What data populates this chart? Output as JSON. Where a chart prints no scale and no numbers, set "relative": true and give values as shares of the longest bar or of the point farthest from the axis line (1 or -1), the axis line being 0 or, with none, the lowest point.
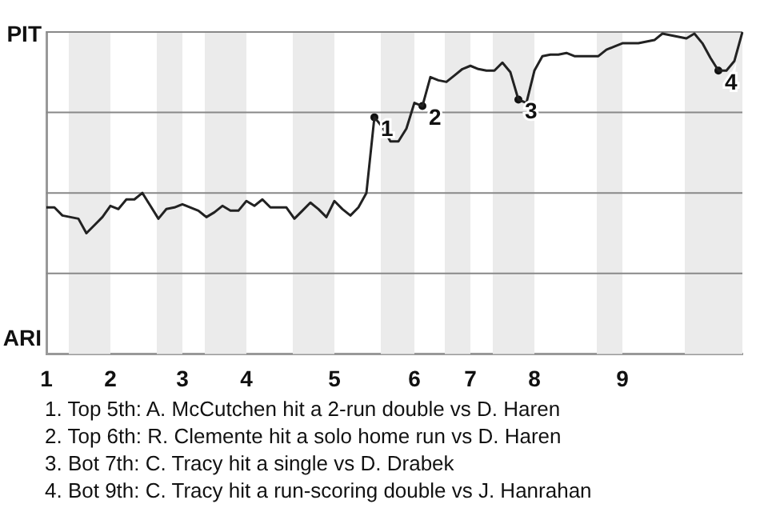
{
  "chart_data": {
    "type": "line",
    "relative": true,
    "categories": [
      "1",
      null,
      null,
      null,
      null,
      null,
      null,
      null,
      "2",
      null,
      null,
      null,
      null,
      null,
      null,
      null,
      null,
      "3",
      null,
      null,
      null,
      null,
      null,
      null,
      null,
      "4",
      null,
      null,
      null,
      null,
      null,
      null,
      null,
      null,
      null,
      null,
      "5",
      null,
      null,
      null,
      null,
      null,
      null,
      null,
      null,
      null,
      "6",
      null,
      null,
      null,
      null,
      null,
      null,
      "7",
      null,
      null,
      null,
      null,
      null,
      null,
      null,
      "8",
      null,
      null,
      null,
      null,
      null,
      null,
      null,
      null,
      null,
      null,
      "9",
      null,
      null,
      null,
      null,
      null,
      null,
      null,
      null,
      null,
      null,
      null,
      null,
      null,
      null,
      null
    ],
    "series": [
      {
        "color": "#222222",
        "values": [
          0.455,
          0.455,
          0.43,
          0.425,
          0.42,
          0.375,
          0.4,
          0.425,
          0.46,
          0.45,
          0.48,
          0.48,
          0.5,
          0.46,
          0.42,
          0.45,
          0.455,
          0.465,
          0.455,
          0.445,
          0.425,
          0.44,
          0.46,
          0.445,
          0.445,
          0.475,
          0.46,
          0.48,
          0.455,
          0.455,
          0.455,
          0.42,
          0.445,
          0.47,
          0.45,
          0.425,
          0.475,
          0.45,
          0.43,
          0.455,
          0.5,
          0.735,
          0.705,
          0.66,
          0.66,
          0.7,
          0.78,
          0.77,
          0.86,
          0.85,
          0.845,
          0.865,
          0.885,
          0.895,
          0.885,
          0.88,
          0.88,
          0.905,
          0.875,
          0.79,
          0.78,
          0.88,
          0.925,
          0.93,
          0.93,
          0.935,
          0.925,
          0.925,
          0.925,
          0.925,
          0.945,
          0.955,
          0.965,
          0.965,
          0.965,
          0.97,
          0.975,
          0.995,
          0.99,
          0.985,
          0.98,
          0.995,
          0.965,
          0.92,
          0.88,
          0.88,
          0.91,
          1
        ],
        "name": null
      },
      {
        "type": "scatter",
        "name": "1",
        "color": "#111111",
        "marker": "circle",
        "values": [
          null,
          null,
          null,
          null,
          null,
          null,
          null,
          null,
          null,
          null,
          null,
          null,
          null,
          null,
          null,
          null,
          null,
          null,
          null,
          null,
          null,
          null,
          null,
          null,
          null,
          null,
          null,
          null,
          null,
          null,
          null,
          null,
          null,
          null,
          null,
          null,
          null,
          null,
          null,
          null,
          null,
          0.735,
          null,
          null,
          null,
          null,
          null,
          null,
          null,
          null,
          null,
          null,
          null,
          null,
          null,
          null,
          null,
          null,
          null,
          null,
          null,
          null,
          null,
          null,
          null,
          null,
          null,
          null,
          null,
          null,
          null,
          null,
          null,
          null,
          null,
          null,
          null,
          null,
          null,
          null,
          null,
          null,
          null,
          null,
          null,
          null,
          null,
          null
        ]
      },
      {
        "type": "scatter",
        "name": "2",
        "color": "#111111",
        "marker": "circle",
        "values": [
          null,
          null,
          null,
          null,
          null,
          null,
          null,
          null,
          null,
          null,
          null,
          null,
          null,
          null,
          null,
          null,
          null,
          null,
          null,
          null,
          null,
          null,
          null,
          null,
          null,
          null,
          null,
          null,
          null,
          null,
          null,
          null,
          null,
          null,
          null,
          null,
          null,
          null,
          null,
          null,
          null,
          null,
          null,
          null,
          null,
          null,
          null,
          0.77,
          null,
          null,
          null,
          null,
          null,
          null,
          null,
          null,
          null,
          null,
          null,
          null,
          null,
          null,
          null,
          null,
          null,
          null,
          null,
          null,
          null,
          null,
          null,
          null,
          null,
          null,
          null,
          null,
          null,
          null,
          null,
          null,
          null,
          null,
          null,
          null,
          null,
          null,
          null,
          null
        ]
      },
      {
        "type": "scatter",
        "name": "3",
        "color": "#111111",
        "marker": "circle",
        "values": [
          null,
          null,
          null,
          null,
          null,
          null,
          null,
          null,
          null,
          null,
          null,
          null,
          null,
          null,
          null,
          null,
          null,
          null,
          null,
          null,
          null,
          null,
          null,
          null,
          null,
          null,
          null,
          null,
          null,
          null,
          null,
          null,
          null,
          null,
          null,
          null,
          null,
          null,
          null,
          null,
          null,
          null,
          null,
          null,
          null,
          null,
          null,
          null,
          null,
          null,
          null,
          null,
          null,
          null,
          null,
          null,
          null,
          null,
          null,
          0.79,
          null,
          null,
          null,
          null,
          null,
          null,
          null,
          null,
          null,
          null,
          null,
          null,
          null,
          null,
          null,
          null,
          null,
          null,
          null,
          null,
          null,
          null,
          null,
          null,
          null,
          null,
          null,
          null
        ]
      },
      {
        "type": "scatter",
        "name": "4",
        "color": "#111111",
        "marker": "circle",
        "values": [
          null,
          null,
          null,
          null,
          null,
          null,
          null,
          null,
          null,
          null,
          null,
          null,
          null,
          null,
          null,
          null,
          null,
          null,
          null,
          null,
          null,
          null,
          null,
          null,
          null,
          null,
          null,
          null,
          null,
          null,
          null,
          null,
          null,
          null,
          null,
          null,
          null,
          null,
          null,
          null,
          null,
          null,
          null,
          null,
          null,
          null,
          null,
          null,
          null,
          null,
          null,
          null,
          null,
          null,
          null,
          null,
          null,
          null,
          null,
          null,
          null,
          null,
          null,
          null,
          null,
          null,
          null,
          null,
          null,
          null,
          null,
          null,
          null,
          null,
          null,
          null,
          null,
          null,
          null,
          null,
          null,
          null,
          null,
          null,
          0.88,
          null,
          null,
          null
        ]
      }
    ],
    "legend": false,
    "marker": "none",
    "line_style": "solid",
    "ref_lines": [
      {
        "axis": "y",
        "value": 0.25,
        "color": "#888888"
      },
      {
        "axis": "y",
        "value": 0.5,
        "color": "#888888"
      },
      {
        "axis": "y",
        "value": 0.75,
        "color": "#888888"
      },
      {
        "axis": "y",
        "value": 1,
        "color": "#888888"
      }
    ],
    "annotations": [
      "PIT",
      "ARI",
      "1. Top 5th: A. McCutchen hit a 2-run double vs D. Haren",
      "2. Top 6th: R. Clemente hit a solo home run vs D. Haren",
      "3. Bot 7th: C. Tracy hit a single vs D. Drabek",
      "4. Bot 9th: C. Tracy hit a run-scoring double vs J. Hanrahan"
    ]
  }
}
